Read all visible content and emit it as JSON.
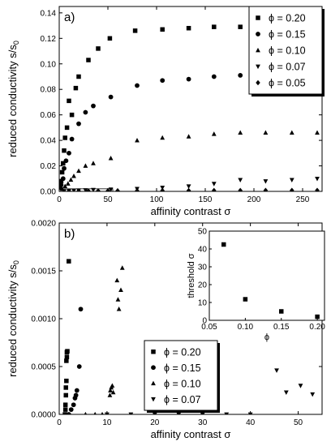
{
  "chart_data": [
    {
      "panel": "a)",
      "type": "scatter",
      "xlabel": "affinity contrast σ",
      "ylabel": "reduced conductivity s/s",
      "ylabel_sub": "0",
      "xlim": [
        0,
        270
      ],
      "ylim": [
        0,
        0.145
      ],
      "xticks": [
        0,
        50,
        100,
        150,
        200,
        250
      ],
      "yticks": [
        0.0,
        0.02,
        0.04,
        0.06,
        0.08,
        0.1,
        0.12,
        0.14
      ],
      "ytick_labels": [
        "0.00",
        "0.02",
        "0.04",
        "0.06",
        "0.08",
        "0.10",
        "0.12",
        "0.14"
      ],
      "legend_position": "top-right",
      "series": [
        {
          "name": "ϕ = 0.20",
          "marker": "square",
          "points": [
            [
              1,
              0.003
            ],
            [
              2,
              0.008
            ],
            [
              3,
              0.015
            ],
            [
              4,
              0.022
            ],
            [
              5,
              0.032
            ],
            [
              6,
              0.042
            ],
            [
              8,
              0.05
            ],
            [
              13,
              0.06
            ],
            [
              10,
              0.071
            ],
            [
              17,
              0.081
            ],
            [
              20,
              0.09
            ],
            [
              30,
              0.103
            ],
            [
              40,
              0.112
            ],
            [
              52,
              0.12
            ],
            [
              78,
              0.126
            ],
            [
              106,
              0.127
            ],
            [
              133,
              0.128
            ],
            [
              159,
              0.129
            ],
            [
              186,
              0.129
            ]
          ]
        },
        {
          "name": "ϕ = 0.15",
          "marker": "circle",
          "points": [
            [
              2,
              0.005
            ],
            [
              4,
              0.01
            ],
            [
              5,
              0.018
            ],
            [
              7,
              0.024
            ],
            [
              10,
              0.03
            ],
            [
              13,
              0.041
            ],
            [
              20,
              0.053
            ],
            [
              27,
              0.062
            ],
            [
              35,
              0.067
            ],
            [
              53,
              0.074
            ],
            [
              80,
              0.083
            ],
            [
              106,
              0.087
            ],
            [
              133,
              0.088
            ],
            [
              159,
              0.09
            ],
            [
              186,
              0.091
            ]
          ]
        },
        {
          "name": "ϕ = 0.10",
          "marker": "triangle-up",
          "points": [
            [
              3,
              0.002
            ],
            [
              6,
              0.004
            ],
            [
              9,
              0.006
            ],
            [
              12,
              0.009
            ],
            [
              15,
              0.012
            ],
            [
              20,
              0.016
            ],
            [
              27,
              0.02
            ],
            [
              35,
              0.022
            ],
            [
              53,
              0.026
            ],
            [
              80,
              0.04
            ],
            [
              106,
              0.042
            ],
            [
              133,
              0.043
            ],
            [
              159,
              0.045
            ],
            [
              186,
              0.046
            ],
            [
              212,
              0.046
            ],
            [
              239,
              0.046
            ],
            [
              265,
              0.046
            ]
          ]
        },
        {
          "name": "ϕ = 0.07",
          "marker": "triangle-down",
          "points": [
            [
              5,
              0.0002
            ],
            [
              10,
              0.0004
            ],
            [
              15,
              0.0006
            ],
            [
              20,
              0.0008
            ],
            [
              27,
              0.001
            ],
            [
              35,
              0.0012
            ],
            [
              53,
              0.0015
            ],
            [
              80,
              0.002
            ],
            [
              106,
              0.003
            ],
            [
              133,
              0.004
            ],
            [
              159,
              0.006
            ],
            [
              186,
              0.009
            ],
            [
              212,
              0.008
            ],
            [
              239,
              0.009
            ],
            [
              265,
              0.01
            ]
          ]
        },
        {
          "name": "ϕ = 0.05",
          "marker": "diamond",
          "points": [
            [
              10,
              0.0002
            ],
            [
              20,
              0.0003
            ],
            [
              30,
              0.0003
            ],
            [
              40,
              0.0004
            ],
            [
              50,
              0.0004
            ],
            [
              60,
              0.0005
            ],
            [
              80,
              0.0005
            ],
            [
              106,
              0.0006
            ],
            [
              133,
              0.0006
            ],
            [
              159,
              0.0007
            ],
            [
              186,
              0.0007
            ],
            [
              212,
              0.0008
            ],
            [
              239,
              0.0008
            ],
            [
              265,
              0.0008
            ]
          ]
        }
      ],
      "zoom_box": {
        "x": [
          0,
          55
        ],
        "y": [
          0,
          0.002
        ]
      }
    },
    {
      "panel": "b)",
      "type": "scatter",
      "xlabel": "affinity contrast σ",
      "ylabel": "reduced conductivity s/s",
      "ylabel_sub": "0",
      "xlim": [
        0,
        55
      ],
      "ylim": [
        0,
        0.002
      ],
      "xticks": [
        0,
        10,
        20,
        30,
        40,
        50
      ],
      "yticks": [
        0.0,
        0.0005,
        0.001,
        0.0015,
        0.002
      ],
      "ytick_labels": [
        "0.0000",
        "0.0005",
        "0.0010",
        "0.0015",
        "0.0020"
      ],
      "legend_position": "lower-center",
      "series": [
        {
          "name": "ϕ = 0.20",
          "marker": "square",
          "points": [
            [
              1.2,
              0
            ],
            [
              1.3,
              5e-05
            ],
            [
              1.3,
              0.0001
            ],
            [
              1.4,
              0.0002
            ],
            [
              1.4,
              0.00028
            ],
            [
              1.5,
              0.00035
            ],
            [
              1.5,
              0.00056
            ],
            [
              1.6,
              0.0006
            ],
            [
              1.6,
              0.00065
            ],
            [
              1.7,
              0.00066
            ],
            [
              2.0,
              0.0016
            ]
          ]
        },
        {
          "name": "ϕ = 0.15",
          "marker": "circle",
          "points": [
            [
              2.0,
              0
            ],
            [
              2.5,
              5e-05
            ],
            [
              3.0,
              0.0001
            ],
            [
              3.3,
              0.00017
            ],
            [
              3.5,
              0.0002
            ],
            [
              3.7,
              0.00025
            ],
            [
              4.2,
              0.0005
            ],
            [
              4.5,
              0.0011
            ]
          ]
        },
        {
          "name": "ϕ = 0.10",
          "marker": "triangle-up",
          "points": [
            [
              5.5,
              0
            ],
            [
              7.5,
              0
            ],
            [
              9,
              0
            ],
            [
              10.6,
              0.0002
            ],
            [
              10.7,
              0.00025
            ],
            [
              10.9,
              0.00028
            ],
            [
              11.1,
              0.0003
            ],
            [
              11.3,
              0.00023
            ],
            [
              12.1,
              0.0014
            ],
            [
              12.3,
              0.0012
            ],
            [
              12.5,
              0.0011
            ],
            [
              12.9,
              0.0013
            ],
            [
              13.2,
              0.00153
            ]
          ]
        },
        {
          "name": "ϕ = 0.07",
          "marker": "triangle-down",
          "points": [
            [
              10,
              0
            ],
            [
              15,
              0
            ],
            [
              20,
              0
            ],
            [
              25,
              0
            ],
            [
              30,
              0
            ],
            [
              35,
              0
            ],
            [
              40,
              0
            ],
            [
              45.5,
              0.00046
            ],
            [
              47.5,
              0.00023
            ],
            [
              50.5,
              0.0003
            ],
            [
              53,
              0.00021
            ]
          ]
        }
      ],
      "inset": {
        "xlabel": "ϕ",
        "ylabel": "threshold σ",
        "xlim": [
          0.05,
          0.21
        ],
        "ylim": [
          0,
          50
        ],
        "xticks": [
          0.05,
          0.1,
          0.15,
          0.2
        ],
        "xtick_labels": [
          "0.05",
          "0.10",
          "0.15",
          "0.20"
        ],
        "yticks": [
          0,
          10,
          20,
          30,
          40,
          50
        ],
        "points": [
          [
            0.07,
            42.5
          ],
          [
            0.1,
            11.8
          ],
          [
            0.15,
            5.0
          ],
          [
            0.2,
            2.0
          ]
        ]
      }
    }
  ]
}
